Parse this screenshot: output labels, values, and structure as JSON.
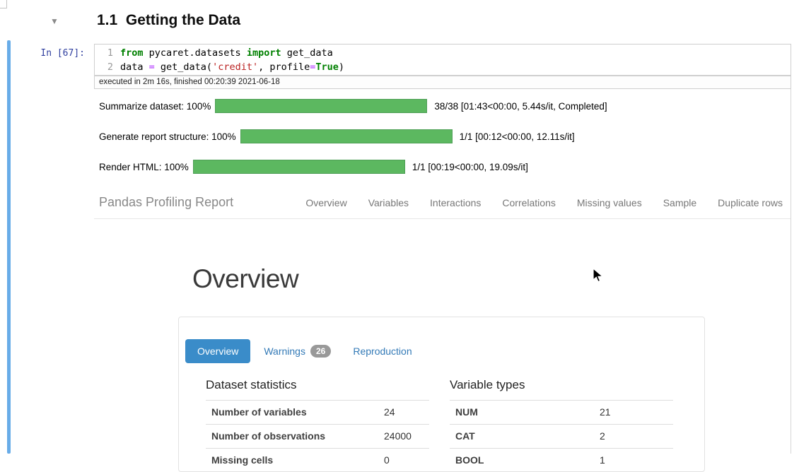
{
  "header": {
    "collapse_icon": "▼",
    "title": "1.1  Getting the Data"
  },
  "cell": {
    "prompt": "In [67]:",
    "code_lines": [
      {
        "num": "1",
        "tokens": [
          {
            "text": "from",
            "style": "kw"
          },
          {
            "text": " pycaret.datasets ",
            "style": "plain"
          },
          {
            "text": "import",
            "style": "kw"
          },
          {
            "text": " get_data",
            "style": "plain"
          }
        ]
      },
      {
        "num": "2",
        "tokens": [
          {
            "text": "data ",
            "style": "plain"
          },
          {
            "text": "=",
            "style": "op"
          },
          {
            "text": " get_data(",
            "style": "plain"
          },
          {
            "text": "'credit'",
            "style": "str"
          },
          {
            "text": ", profile",
            "style": "plain"
          },
          {
            "text": "=",
            "style": "op"
          },
          {
            "text": "True",
            "style": "kw"
          },
          {
            "text": ")",
            "style": "plain"
          }
        ]
      }
    ],
    "executed": "executed in 2m 16s, finished 00:20:39 2021-06-18"
  },
  "progress": [
    {
      "label": "Summarize dataset: 100%",
      "percent": 100,
      "status": "38/38 [01:43<00:00, 5.44s/it, Completed]"
    },
    {
      "label": "Generate report structure: 100%",
      "percent": 100,
      "status": "1/1 [00:12<00:00, 12.11s/it]"
    },
    {
      "label": "Render HTML: 100%",
      "percent": 100,
      "status": "1/1 [00:19<00:00, 19.09s/it]"
    }
  ],
  "report": {
    "brand": "Pandas Profiling Report",
    "nav": [
      "Overview",
      "Variables",
      "Interactions",
      "Correlations",
      "Missing values",
      "Sample",
      "Duplicate rows"
    ],
    "section_title": "Overview",
    "tabs": [
      {
        "label": "Overview",
        "active": true
      },
      {
        "label": "Warnings",
        "badge": "26"
      },
      {
        "label": "Reproduction"
      }
    ],
    "dataset_statistics": {
      "title": "Dataset statistics",
      "rows": [
        {
          "label": "Number of variables",
          "value": "24"
        },
        {
          "label": "Number of observations",
          "value": "24000"
        },
        {
          "label": "Missing cells",
          "value": "0"
        }
      ]
    },
    "variable_types": {
      "title": "Variable types",
      "rows": [
        {
          "label": "NUM",
          "value": "21"
        },
        {
          "label": "CAT",
          "value": "2"
        },
        {
          "label": "BOOL",
          "value": "1"
        }
      ]
    }
  },
  "colors": {
    "accent_blue": "#3a8cc9",
    "link_blue": "#337ab7",
    "progress_green": "#5cb860",
    "selected_cell_blue": "#68ace8",
    "keyword_green": "#008000",
    "string_red": "#ba2121",
    "operator_purple": "#aa22ff",
    "prompt_navy": "#303f9f"
  }
}
